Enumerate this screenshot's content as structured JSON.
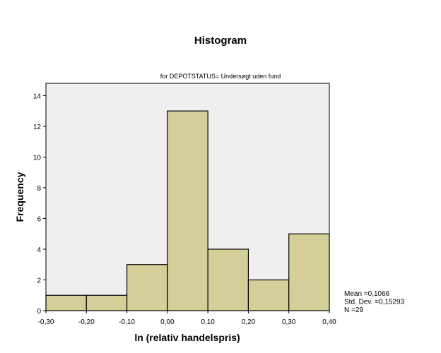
{
  "chart_data": {
    "type": "bar",
    "title": "Histogram",
    "subtitle": "for DEPOTSTATUS= Undersøgt uden fund",
    "xlabel": "ln (relativ handelspris)",
    "ylabel": "Frequency",
    "bins": [
      {
        "from": -0.3,
        "to": -0.2,
        "count": 1
      },
      {
        "from": -0.2,
        "to": -0.1,
        "count": 1
      },
      {
        "from": -0.1,
        "to": 0.0,
        "count": 3
      },
      {
        "from": 0.0,
        "to": 0.1,
        "count": 13
      },
      {
        "from": 0.1,
        "to": 0.2,
        "count": 4
      },
      {
        "from": 0.2,
        "to": 0.3,
        "count": 2
      },
      {
        "from": 0.3,
        "to": 0.4,
        "count": 5
      }
    ],
    "xlim": [
      -0.3,
      0.4
    ],
    "ylim": [
      0,
      14.8
    ],
    "x_ticks": [
      "-0,30",
      "-0,20",
      "-0,10",
      "0,00",
      "0,10",
      "0,20",
      "0,30",
      "0,40"
    ],
    "x_tick_values": [
      -0.3,
      -0.2,
      -0.1,
      0.0,
      0.1,
      0.2,
      0.3,
      0.4
    ],
    "y_ticks": [
      "0",
      "2",
      "4",
      "6",
      "8",
      "10",
      "12",
      "14"
    ],
    "y_tick_values": [
      0,
      2,
      4,
      6,
      8,
      10,
      12,
      14
    ],
    "stats": [
      "Mean =0,1066",
      "Std. Dev. =0,15293",
      "N =29"
    ],
    "grid": false,
    "colors": {
      "bar_fill": "#d4cf98",
      "plot_background": "#efefef",
      "stroke": "#000000"
    }
  }
}
